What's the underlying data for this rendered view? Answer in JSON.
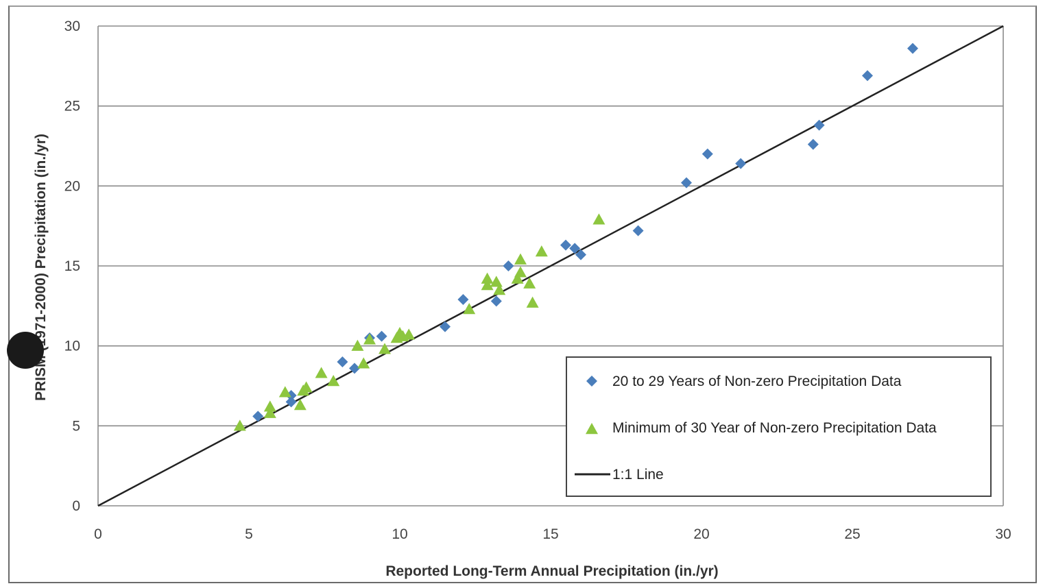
{
  "chart_data": {
    "type": "scatter",
    "xlabel": "Reported Long-Term Annual Precipitation (in./yr)",
    "ylabel": "PRISM (1971-2000) Precipitation (in./yr)",
    "xlim": [
      0,
      30
    ],
    "ylim": [
      0,
      30
    ],
    "xticks": [
      0,
      5,
      10,
      15,
      20,
      25,
      30
    ],
    "yticks": [
      0,
      5,
      10,
      15,
      20,
      25,
      30
    ],
    "grid": "horizontal",
    "legend_placement": "lower-right",
    "series": [
      {
        "name": "20 to 29 Years of Non-zero Precipitation Data",
        "marker": "diamond",
        "color": "#4a7ebb",
        "points": [
          [
            5.3,
            5.6
          ],
          [
            6.4,
            6.9
          ],
          [
            6.4,
            6.5
          ],
          [
            8.1,
            9.0
          ],
          [
            8.5,
            8.6
          ],
          [
            9.0,
            10.5
          ],
          [
            9.4,
            10.6
          ],
          [
            11.5,
            11.2
          ],
          [
            12.1,
            12.9
          ],
          [
            13.2,
            12.8
          ],
          [
            13.6,
            15.0
          ],
          [
            15.5,
            16.3
          ],
          [
            15.8,
            16.1
          ],
          [
            16.0,
            15.7
          ],
          [
            17.9,
            17.2
          ],
          [
            19.5,
            20.2
          ],
          [
            20.2,
            22.0
          ],
          [
            21.3,
            21.4
          ],
          [
            23.7,
            22.6
          ],
          [
            23.9,
            23.8
          ],
          [
            25.5,
            26.9
          ],
          [
            27.0,
            28.6
          ]
        ]
      },
      {
        "name": "Minimum of 30 Year of Non-zero Precipitation Data",
        "marker": "triangle",
        "color": "#8dc63f",
        "points": [
          [
            4.7,
            5.0
          ],
          [
            5.7,
            5.8
          ],
          [
            5.7,
            6.2
          ],
          [
            6.2,
            7.1
          ],
          [
            6.7,
            6.3
          ],
          [
            6.8,
            7.2
          ],
          [
            6.9,
            7.4
          ],
          [
            7.4,
            8.3
          ],
          [
            7.8,
            7.8
          ],
          [
            8.6,
            10.0
          ],
          [
            8.8,
            8.9
          ],
          [
            9.0,
            10.4
          ],
          [
            9.5,
            9.8
          ],
          [
            9.9,
            10.5
          ],
          [
            10.0,
            10.8
          ],
          [
            10.1,
            10.6
          ],
          [
            10.3,
            10.7
          ],
          [
            12.3,
            12.3
          ],
          [
            12.9,
            14.2
          ],
          [
            12.9,
            13.8
          ],
          [
            13.2,
            14.0
          ],
          [
            13.3,
            13.5
          ],
          [
            13.9,
            14.2
          ],
          [
            14.0,
            15.4
          ],
          [
            14.0,
            14.6
          ],
          [
            14.3,
            13.9
          ],
          [
            14.4,
            12.7
          ],
          [
            14.7,
            15.9
          ],
          [
            16.6,
            17.9
          ]
        ]
      },
      {
        "name": "1:1 Line",
        "marker": "line",
        "color": "#222222",
        "points": [
          [
            0,
            0
          ],
          [
            30,
            30
          ]
        ]
      }
    ]
  }
}
